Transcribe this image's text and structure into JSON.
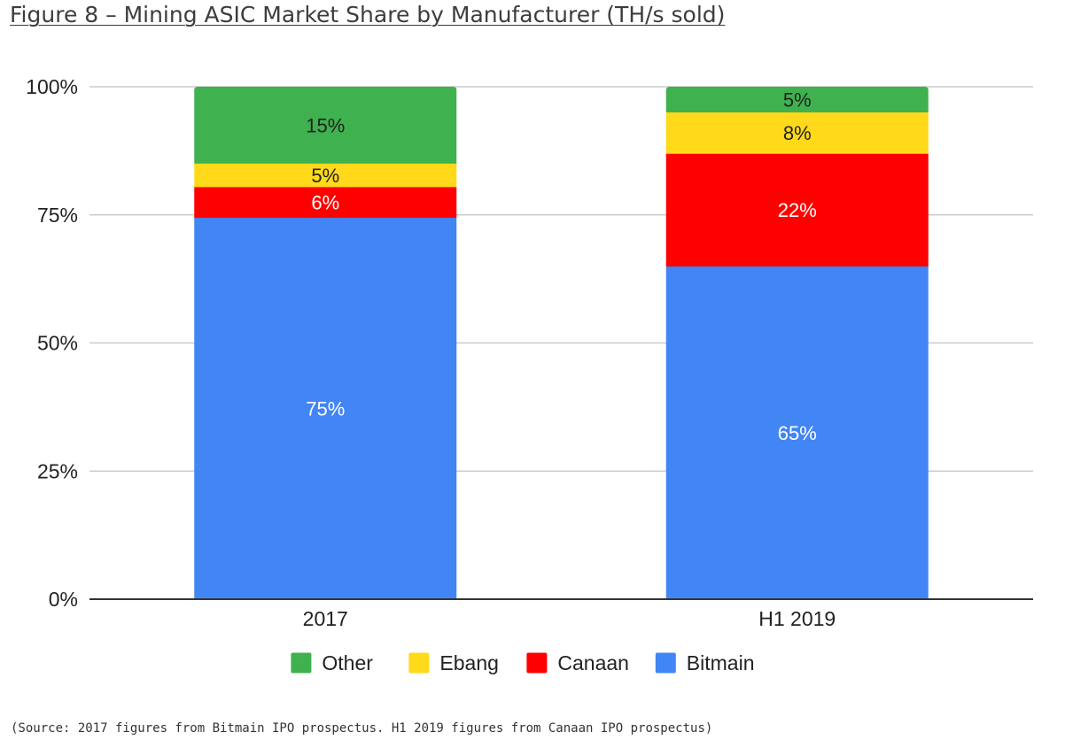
{
  "title": "Figure 8 – Mining ASIC Market Share by Manufacturer (TH/s sold)",
  "source": "(Source: 2017 figures from Bitmain IPO prospectus. H1 2019 figures from Canaan IPO prospectus)",
  "chart_data": {
    "type": "bar",
    "stacked": true,
    "categories": [
      "2017",
      "H1 2019"
    ],
    "series": [
      {
        "name": "Bitmain",
        "color": "#4285F4",
        "label_color": "#ffffff",
        "values": [
          74.5,
          65
        ],
        "labels": [
          "75%",
          "65%"
        ]
      },
      {
        "name": "Canaan",
        "color": "#FF0000",
        "label_color": "#ffffff",
        "values": [
          6,
          22
        ],
        "labels": [
          "6%",
          "22%"
        ]
      },
      {
        "name": "Ebang",
        "color": "#FFD91A",
        "label_color": "#222222",
        "values": [
          4.5,
          8
        ],
        "labels": [
          "5%",
          "8%"
        ]
      },
      {
        "name": "Other",
        "color": "#3FB14E",
        "label_color": "#222222",
        "values": [
          15,
          5
        ],
        "labels": [
          "15%",
          "5%"
        ]
      }
    ],
    "legend_order": [
      "Other",
      "Ebang",
      "Canaan",
      "Bitmain"
    ],
    "y_ticks": [
      "0%",
      "25%",
      "50%",
      "75%",
      "100%"
    ],
    "ylim": [
      0,
      100
    ],
    "grid": true,
    "legend_position": "bottom"
  }
}
